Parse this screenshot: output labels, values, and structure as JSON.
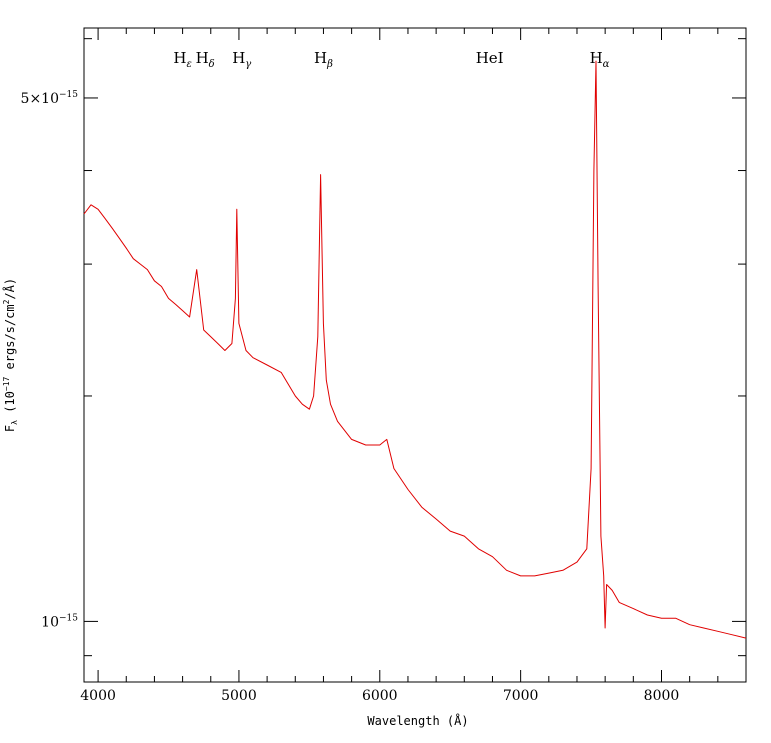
{
  "chart_data": {
    "type": "line",
    "title": "",
    "xlabel": "Wavelength (Å)",
    "ylabel": "F_λ (10⁻¹⁷ ergs/s/cm²/Å)",
    "ylabel_parts": {
      "main": "F",
      "sub": "λ",
      "open": " (10",
      "exp": "−17",
      "rest": " ergs/s/cm",
      "sq": "2",
      "close": "/Å)"
    },
    "xlim": [
      3900,
      8600
    ],
    "ylim": [
      8.3e-16,
      6.2e-15
    ],
    "yscale": "log",
    "xticks": [
      4000,
      5000,
      6000,
      7000,
      8000
    ],
    "xtick_labels": [
      "4000",
      "5000",
      "6000",
      "7000",
      "8000"
    ],
    "yticks": [
      {
        "value": 5e-15,
        "mantissa": "5×10",
        "exp": "−15"
      },
      {
        "value": 1e-15,
        "mantissa": "10",
        "exp": "−15"
      }
    ],
    "grid": false,
    "line_color": "#e00000",
    "emission_lines": [
      {
        "main": "H",
        "sub": "ε",
        "x": 4600
      },
      {
        "main": "H",
        "sub": "δ",
        "x": 4760
      },
      {
        "main": "H",
        "sub": "γ",
        "x": 5020
      },
      {
        "main": "H",
        "sub": "β",
        "x": 5600
      },
      {
        "main": "HeI",
        "sub": "",
        "x": 6780
      },
      {
        "main": "H",
        "sub": "α",
        "x": 7560
      }
    ],
    "series": [
      {
        "x": [
          3900,
          3950,
          4000,
          4050,
          4100,
          4150,
          4200,
          4250,
          4300,
          4350,
          4400,
          4450,
          4500,
          4550,
          4600,
          4650,
          4700,
          4750,
          4800,
          4850,
          4900,
          4950,
          4975,
          4985,
          5000,
          5050,
          5100,
          5200,
          5300,
          5400,
          5450,
          5500,
          5530,
          5560,
          5580,
          5600,
          5620,
          5650,
          5700,
          5800,
          5900,
          6000,
          6050,
          6100,
          6200,
          6300,
          6400,
          6500,
          6600,
          6700,
          6800,
          6900,
          7000,
          7100,
          7200,
          7300,
          7400,
          7470,
          7500,
          7520,
          7535,
          7550,
          7570,
          7590,
          7600,
          7610,
          7650,
          7700,
          7800,
          7900,
          8000,
          8100,
          8200,
          8300,
          8400,
          8500,
          8600
        ],
        "y": [
          3.5e-15,
          3.6e-15,
          3.55e-15,
          3.45e-15,
          3.35e-15,
          3.25e-15,
          3.15e-15,
          3.05e-15,
          3e-15,
          2.95e-15,
          2.85e-15,
          2.8e-15,
          2.7e-15,
          2.65e-15,
          2.6e-15,
          2.55e-15,
          2.95e-15,
          2.45e-15,
          2.4e-15,
          2.35e-15,
          2.3e-15,
          2.35e-15,
          2.7e-15,
          3.55e-15,
          2.5e-15,
          2.3e-15,
          2.25e-15,
          2.2e-15,
          2.15e-15,
          2e-15,
          1.95e-15,
          1.92e-15,
          2e-15,
          2.4e-15,
          3.95e-15,
          2.5e-15,
          2.1e-15,
          1.95e-15,
          1.85e-15,
          1.75e-15,
          1.72e-15,
          1.72e-15,
          1.75e-15,
          1.6e-15,
          1.5e-15,
          1.42e-15,
          1.37e-15,
          1.32e-15,
          1.3e-15,
          1.25e-15,
          1.22e-15,
          1.17e-15,
          1.15e-15,
          1.15e-15,
          1.16e-15,
          1.17e-15,
          1.2e-15,
          1.25e-15,
          1.6e-15,
          4e-15,
          5.6e-15,
          2.8e-15,
          1.3e-15,
          1.15e-15,
          9.8e-16,
          1.12e-15,
          1.1e-15,
          1.06e-15,
          1.04e-15,
          1.02e-15,
          1.01e-15,
          1.01e-15,
          9.9e-16,
          9.8e-16,
          9.7e-16,
          9.6e-16,
          9.5e-16
        ]
      }
    ]
  }
}
